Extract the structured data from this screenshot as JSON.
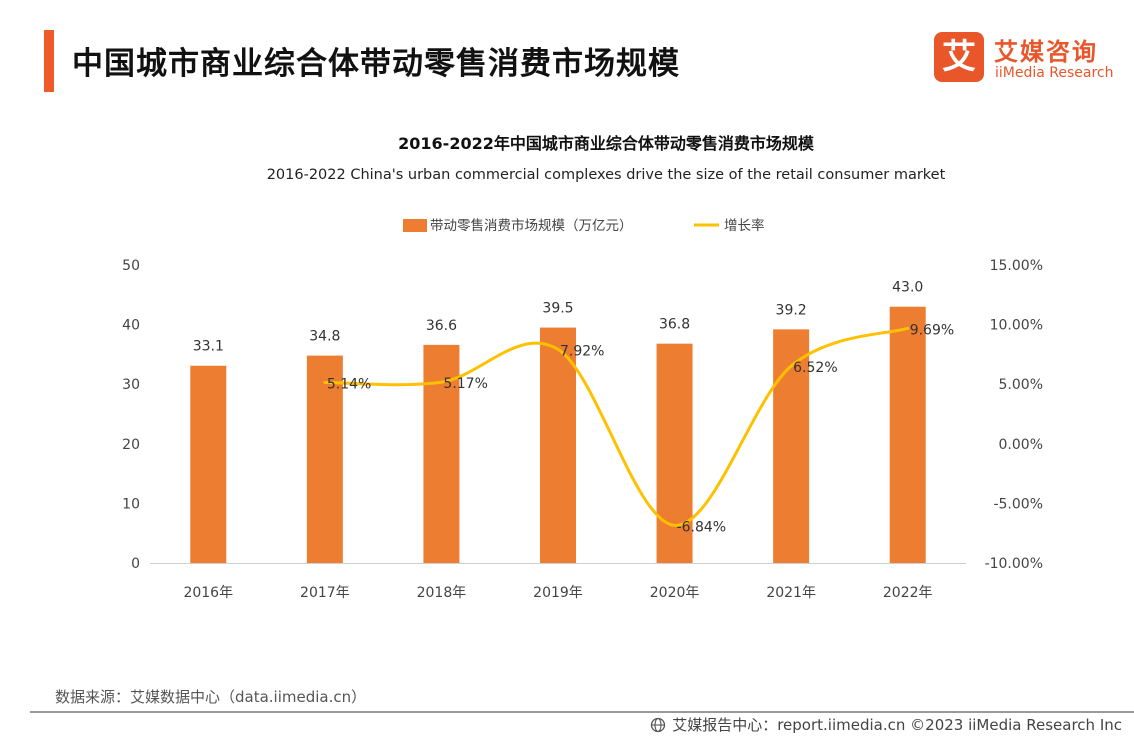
{
  "header": {
    "title": "中国城市商业综合体带动零售消费市场规模"
  },
  "logo": {
    "mark": "艾",
    "cn": "艾媒咨询",
    "en": "iiMedia Research"
  },
  "footer": {
    "source": "数据来源：艾媒数据中心（data.iimedia.cn）",
    "right_text": "艾媒报告中心：report.iimedia.cn  ©2023  iiMedia Research  Inc"
  },
  "colors": {
    "bar": "#ed7d31",
    "line": "#ffc000",
    "accent": "#f05a28"
  },
  "chart_data": {
    "type": "bar",
    "title": "2016-2022年中国城市商业综合体带动零售消费市场规模",
    "subtitle": "2016-2022 China's urban commercial complexes drive the size of the retail consumer market",
    "categories": [
      "2016年",
      "2017年",
      "2018年",
      "2019年",
      "2020年",
      "2021年",
      "2022年"
    ],
    "series": [
      {
        "name": "带动零售消费市场规模（万亿元）",
        "type": "bar",
        "axis": "left",
        "values": [
          33.1,
          34.8,
          36.6,
          39.5,
          36.8,
          39.2,
          43.0
        ],
        "labels": [
          "33.1",
          "34.8",
          "36.6",
          "39.5",
          "36.8",
          "39.2",
          "43.0"
        ]
      },
      {
        "name": "增长率",
        "type": "line",
        "axis": "right",
        "smooth": true,
        "values": [
          null,
          5.14,
          5.17,
          7.92,
          -6.84,
          6.52,
          9.69
        ],
        "labels": [
          "",
          "5.14%",
          "5.17%",
          "7.92%",
          "-6.84%",
          "6.52%",
          "9.69%"
        ]
      }
    ],
    "y_left": {
      "ylim": [
        0,
        50
      ],
      "ticks": [
        "0",
        "10",
        "20",
        "30",
        "40",
        "50"
      ]
    },
    "y_right": {
      "ylim": [
        -10,
        15
      ],
      "ticks": [
        "-10.00%",
        "-5.00%",
        "0.00%",
        "5.00%",
        "10.00%",
        "15.00%"
      ]
    },
    "legend": "top-center",
    "grid": false
  }
}
